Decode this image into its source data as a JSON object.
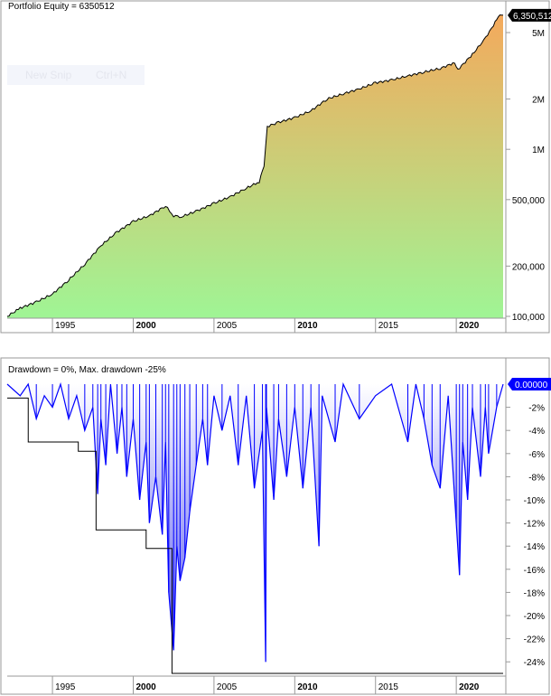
{
  "equity_panel": {
    "title": "Portfolio Equity = 6350512",
    "last_value_label": "6,350,512",
    "y_ticks": [
      {
        "v": 100000,
        "label": "100,000"
      },
      {
        "v": 200000,
        "label": "200,000"
      },
      {
        "v": 500000,
        "label": "500,000"
      },
      {
        "v": 1000000,
        "label": "1M"
      },
      {
        "v": 2000000,
        "label": "2M"
      },
      {
        "v": 5000000,
        "label": "5M"
      }
    ],
    "x_ticks": [
      {
        "year": 1995,
        "label": "1995",
        "bold": false
      },
      {
        "year": 2000,
        "label": "2000",
        "bold": true
      },
      {
        "year": 2005,
        "label": "2005",
        "bold": false
      },
      {
        "year": 2010,
        "label": "2010",
        "bold": true
      },
      {
        "year": 2015,
        "label": "2015",
        "bold": false
      },
      {
        "year": 2020,
        "label": "2020",
        "bold": true
      }
    ],
    "colors": {
      "fill_top": "#f4a95c",
      "fill_bottom": "#9ff595",
      "line": "#000000"
    }
  },
  "drawdown_panel": {
    "title": "Drawdown = 0%, Max. drawdown -25%",
    "last_value_label": "0.00000",
    "y_ticks": [
      "-2%",
      "-4%",
      "-6%",
      "-8%",
      "-10%",
      "-12%",
      "-14%",
      "-16%",
      "-18%",
      "-20%",
      "-22%",
      "-24%"
    ],
    "colors": {
      "line": "#0000ff",
      "fill_top": "#ffffff",
      "fill_bottom": "#5050f0",
      "max_line": "#000000",
      "label_bg": "#0000ff"
    }
  },
  "overlay": {
    "snip_label": "New Snip",
    "snip_shortcut": "Ctrl+N"
  },
  "chart_data": [
    {
      "type": "area",
      "title": "Portfolio Equity = 6350512",
      "y_scale": "log",
      "ylim": [
        90000,
        7000000
      ],
      "xlim": [
        1992.2,
        2022.9
      ],
      "x": [
        1992.2,
        1993,
        1994,
        1995,
        1996,
        1997,
        1998,
        1999,
        2000,
        2001,
        2002,
        2002.5,
        2003,
        2004,
        2005,
        2006,
        2007,
        2007.8,
        2008.1,
        2008.3,
        2009,
        2010,
        2011,
        2012,
        2013,
        2014,
        2015,
        2016,
        2017,
        2018,
        2019,
        2019.9,
        2020.1,
        2021,
        2021.7,
        2022.3,
        2022.6,
        2022.9
      ],
      "values": [
        100000,
        112000,
        122000,
        136000,
        165000,
        205000,
        265000,
        320000,
        370000,
        400000,
        458000,
        400000,
        395000,
        430000,
        475000,
        520000,
        585000,
        640000,
        800000,
        1370000,
        1450000,
        1550000,
        1700000,
        2000000,
        2150000,
        2300000,
        2500000,
        2600000,
        2750000,
        2900000,
        3050000,
        3300000,
        3000000,
        3700000,
        4500000,
        5500000,
        6300000,
        6350512
      ]
    },
    {
      "type": "area",
      "title": "Drawdown = 0%, Max. drawdown -25%",
      "ylim": [
        -25.5,
        0.5
      ],
      "xlim": [
        1992.2,
        2022.9
      ],
      "series": [
        {
          "x": [
            1992.2,
            1993,
            1993.5,
            1994,
            1994.5,
            1995,
            1995.5,
            1996,
            1996.5,
            1997,
            1997.5,
            1997.8,
            1998,
            1998.3,
            1998.6,
            1999,
            1999.3,
            1999.6,
            2000,
            2000.4,
            2000.8,
            2001,
            2001.4,
            2001.8,
            2002,
            2002.2,
            2002.5,
            2002.7,
            2002.9,
            2003.2,
            2003.5,
            2003.9,
            2004.3,
            2004.6,
            2005,
            2005.5,
            2006,
            2006.5,
            2007,
            2007.5,
            2008,
            2008.2,
            2008.25,
            2008.7,
            2009,
            2009.5,
            2010,
            2010.5,
            2011,
            2011.5,
            2011.7,
            2012.5,
            2013,
            2014,
            2015,
            2016,
            2017,
            2017.5,
            2018,
            2018.5,
            2019,
            2019.5,
            2020,
            2020.2,
            2020.4,
            2020.7,
            2021,
            2021.5,
            2021.8,
            2022,
            2022.5,
            2022.9
          ],
          "values": [
            0,
            -1,
            0,
            -3,
            -1,
            -2,
            0,
            -3,
            -1,
            -4,
            -2,
            -9.5,
            -3,
            -7,
            0,
            -6,
            -2,
            -8,
            -3,
            -10,
            -5,
            -12,
            -8,
            -13,
            -5,
            -18,
            -23,
            -14,
            -17,
            -15,
            -11,
            -7,
            -3,
            -7,
            -1,
            -4,
            -1,
            -7,
            -1,
            -9,
            -4,
            -24,
            -2,
            -10,
            -3,
            -8,
            -2,
            -9,
            -2,
            -14,
            -1,
            -5,
            0,
            -3,
            -1,
            0,
            -5,
            0,
            -3,
            -7,
            -9,
            -1,
            -12,
            -16.5,
            -5,
            -10,
            -2,
            -8,
            -2,
            -6,
            -2,
            0
          ]
        },
        {
          "name": "Max. drawdown",
          "x": [
            1992.2,
            1993.5,
            1996.6,
            1997.7,
            2000.8,
            2002.4,
            2022.9
          ],
          "values": [
            -1.2,
            -5,
            -5.8,
            -12.6,
            -14.2,
            -25,
            -25
          ]
        }
      ]
    }
  ]
}
